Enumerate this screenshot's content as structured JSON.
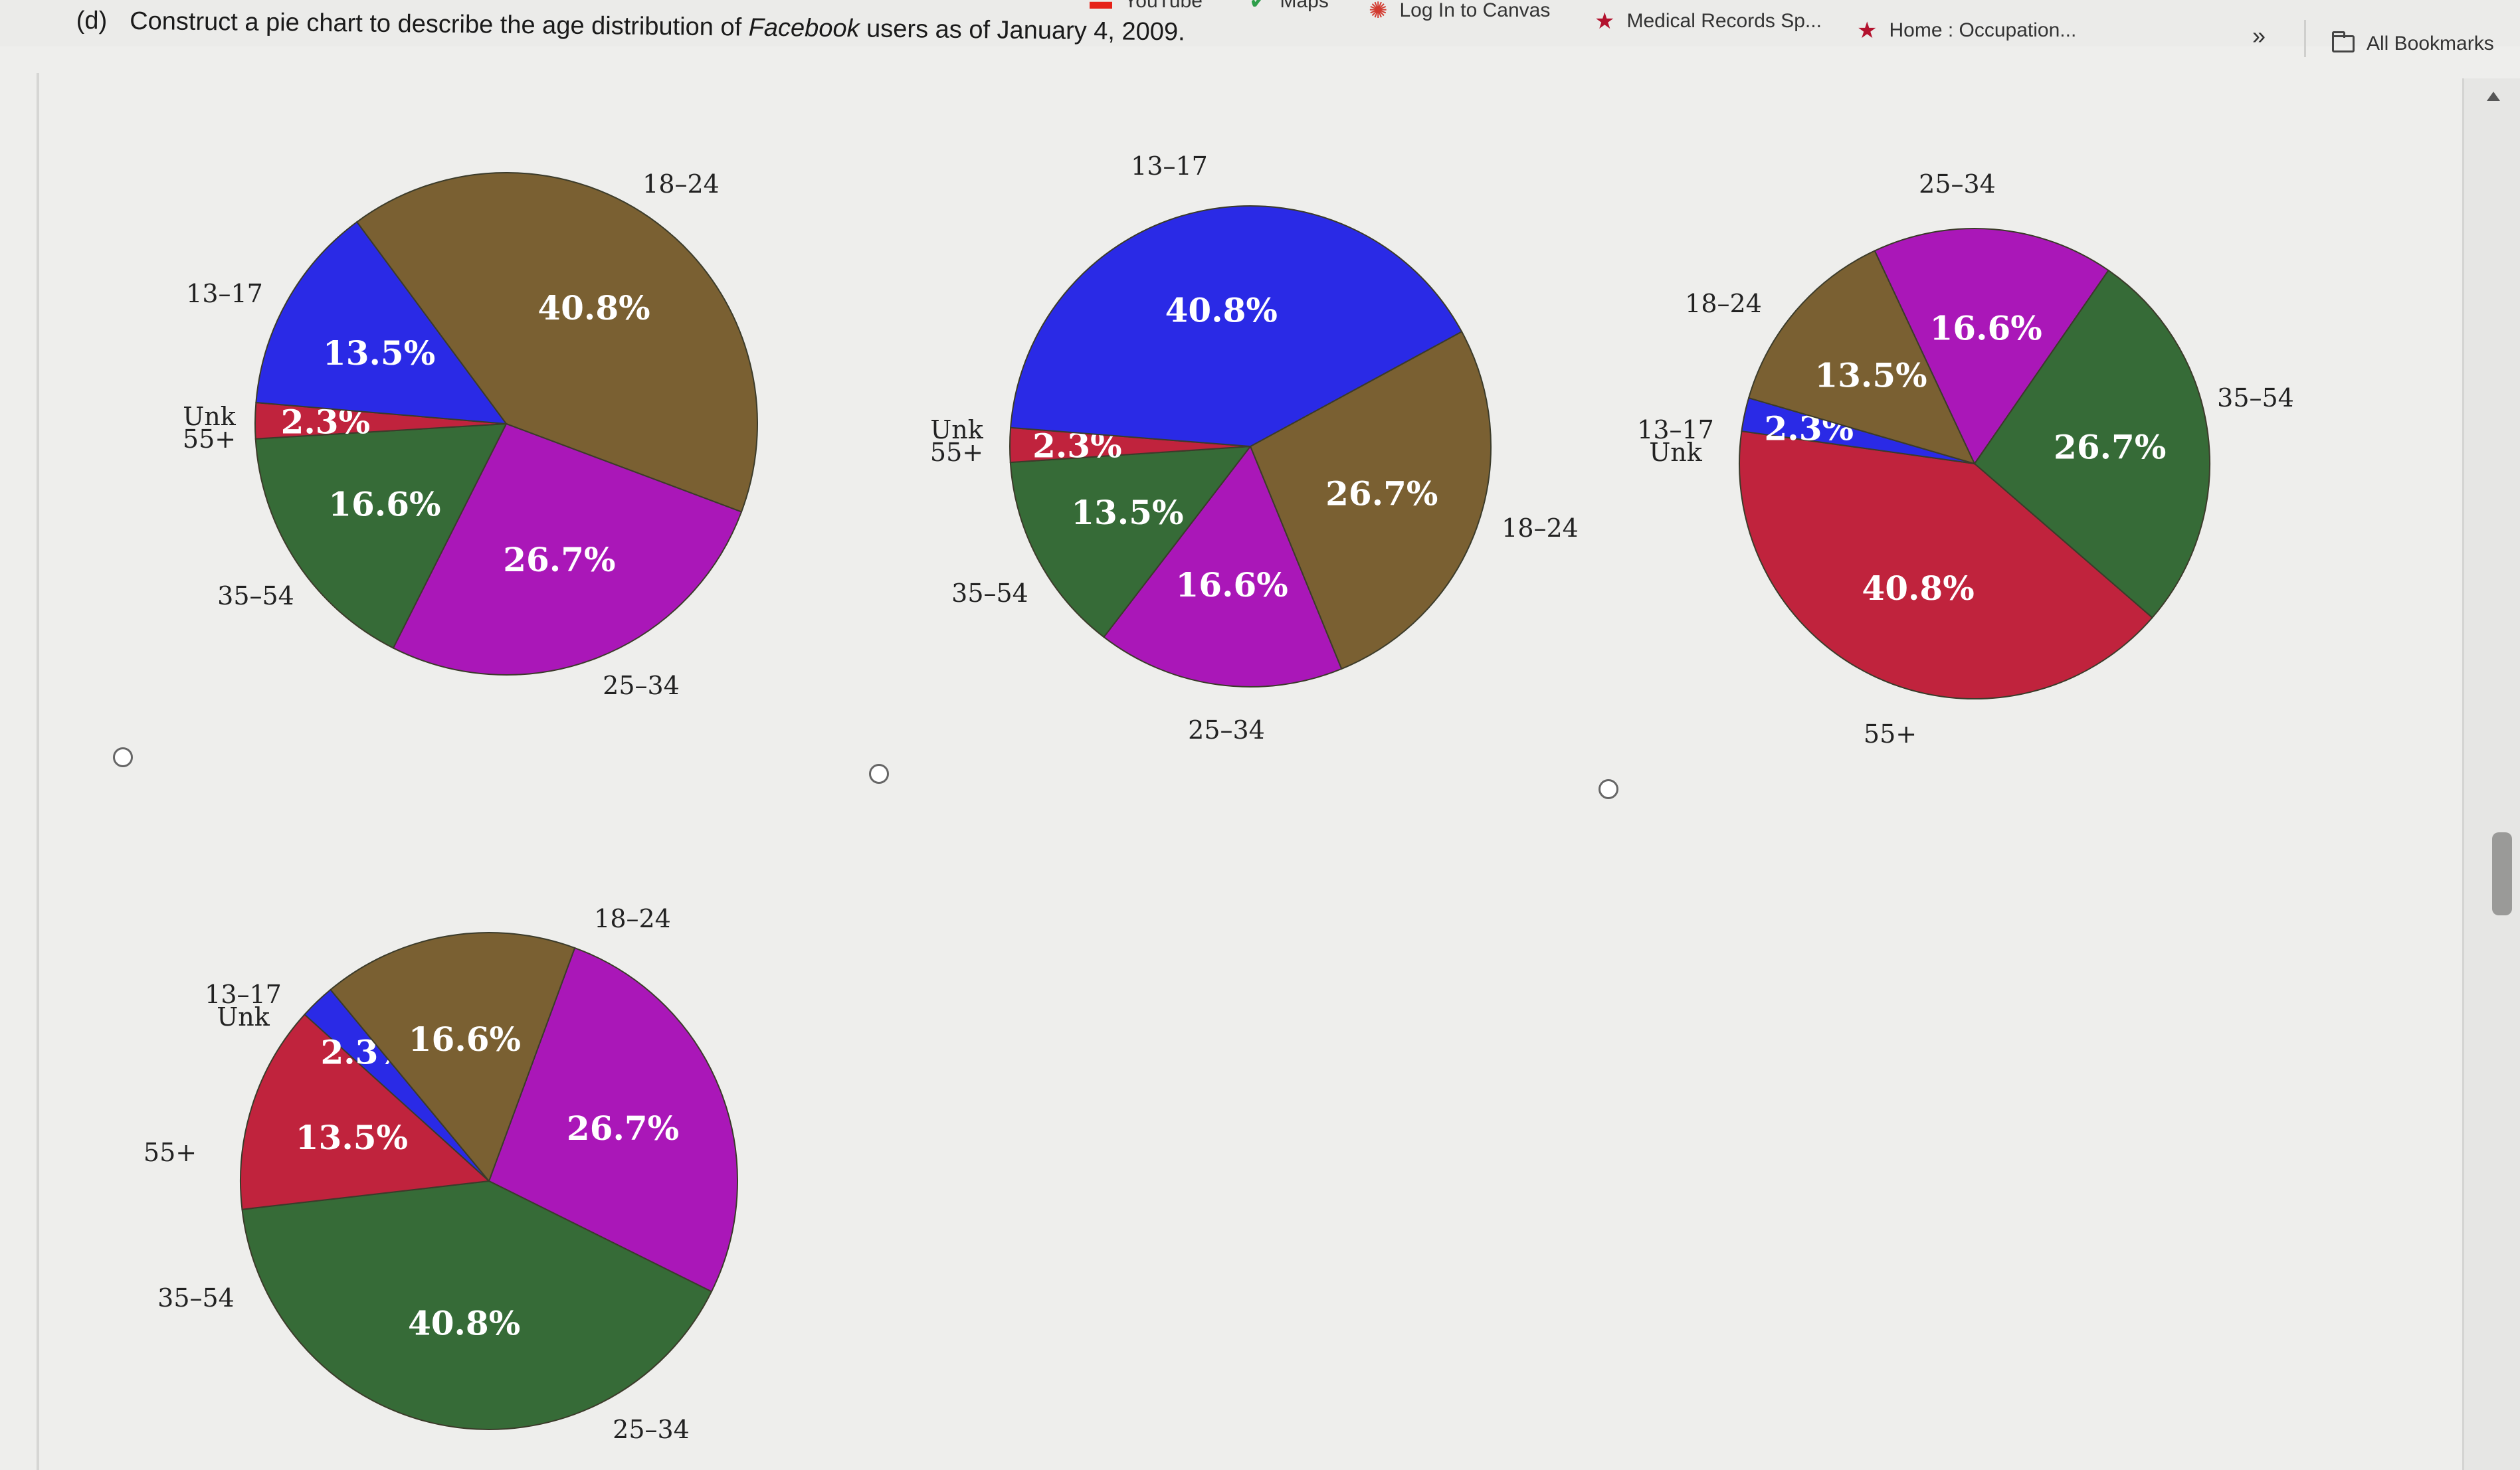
{
  "bookmarks": [
    {
      "id": "youtube",
      "label": "YouTube",
      "icon": "youtube-icon"
    },
    {
      "id": "maps",
      "label": "Maps",
      "icon": "maps-pin-icon"
    },
    {
      "id": "canvas",
      "label": "Log In to Canvas",
      "icon": "canvas-icon"
    },
    {
      "id": "medical",
      "label": "Medical Records Sp...",
      "icon": "star-icon"
    },
    {
      "id": "home",
      "label": "Home : Occupation...",
      "icon": "star-icon"
    }
  ],
  "bookmarks_more": "»",
  "all_bookmarks": "All Bookmarks",
  "question": {
    "part": "(d)",
    "text_before": "Construct a pie chart to describe the age distribution of",
    "emph": "Facebook",
    "text_after": "users as of January 4, 2009."
  },
  "colors": {
    "13-17": "#2a2ae6",
    "18-24": "#7a6032",
    "25-34": "#aa17b8",
    "35-54": "#366b37",
    "55+": "#c0233d",
    "Unk": "#c0233d"
  },
  "chart_data": [
    {
      "type": "pie",
      "option": 1,
      "slices": [
        {
          "category": "18–24",
          "percent_label": "40.8%",
          "value": 40.8,
          "color": "#7a6032"
        },
        {
          "category": "25–34",
          "percent_label": "26.7%",
          "value": 26.7,
          "color": "#aa17b8"
        },
        {
          "category": "35–54",
          "percent_label": "16.6%",
          "value": 16.6,
          "color": "#366b37"
        },
        {
          "category": "Unk 55+",
          "percent_label": "2.3%",
          "value": 2.3,
          "color": "#c0233d"
        },
        {
          "category": "13–17",
          "percent_label": "13.5%",
          "value": 13.5,
          "color": "#2a2ae6"
        }
      ]
    },
    {
      "type": "pie",
      "option": 2,
      "slices": [
        {
          "category": "18–24",
          "percent_label": "26.7%",
          "value": 26.7,
          "color": "#7a6032"
        },
        {
          "category": "25–34",
          "percent_label": "16.6%",
          "value": 16.6,
          "color": "#aa17b8"
        },
        {
          "category": "35–54",
          "percent_label": "13.5%",
          "value": 13.5,
          "color": "#366b37"
        },
        {
          "category": "Unk 55+",
          "percent_label": "2.3%",
          "value": 2.3,
          "color": "#c0233d"
        },
        {
          "category": "13–17",
          "percent_label": "40.8%",
          "value": 40.8,
          "color": "#2a2ae6"
        }
      ]
    },
    {
      "type": "pie",
      "option": 3,
      "slices": [
        {
          "category": "35–54",
          "percent_label": "26.7%",
          "value": 26.7,
          "color": "#366b37"
        },
        {
          "category": "55+",
          "percent_label": "40.8%",
          "value": 40.8,
          "color": "#c0233d"
        },
        {
          "category": "13–17 Unk",
          "percent_label": "2.3%",
          "value": 2.3,
          "color": "#2a2ae6"
        },
        {
          "category": "18–24",
          "percent_label": "13.5%",
          "value": 13.5,
          "color": "#7a6032"
        },
        {
          "category": "25–34",
          "percent_label": "16.6%",
          "value": 16.6,
          "color": "#aa17b8"
        }
      ]
    },
    {
      "type": "pie",
      "option": 4,
      "slices": [
        {
          "category": "25–34",
          "percent_label": "26.7%",
          "value": 26.7,
          "color": "#aa17b8"
        },
        {
          "category": "35–54",
          "percent_label": "40.8%",
          "value": 40.8,
          "color": "#366b37"
        },
        {
          "category": "55+",
          "percent_label": "13.5%",
          "value": 13.5,
          "color": "#c0233d"
        },
        {
          "category": "13–17 Unk",
          "percent_label": "2.3%",
          "value": 2.3,
          "color": "#2a2ae6"
        },
        {
          "category": "18–24",
          "percent_label": "16.6%",
          "value": 16.6,
          "color": "#7a6032"
        }
      ]
    }
  ]
}
